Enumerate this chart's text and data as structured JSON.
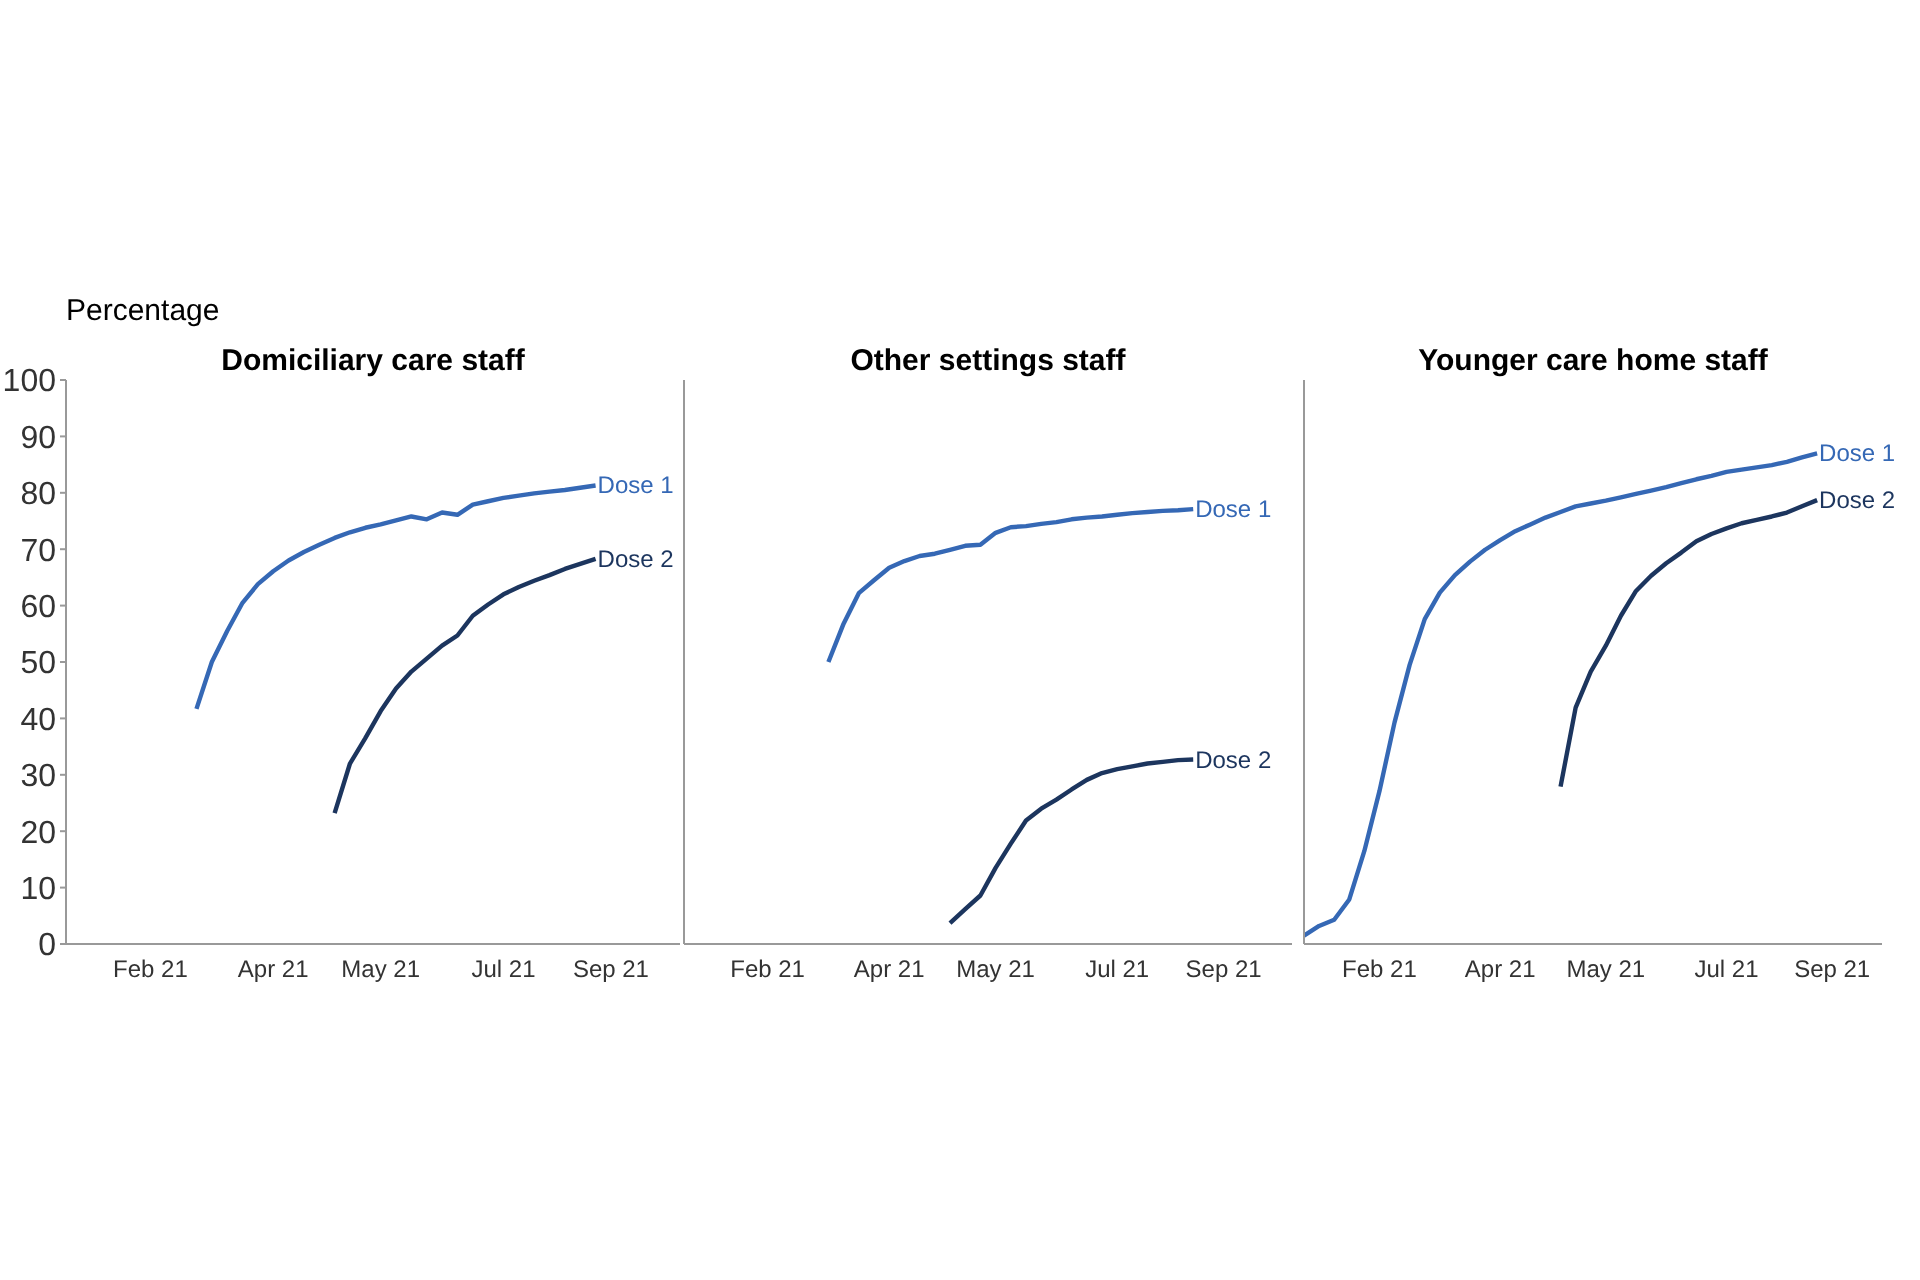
{
  "chart_data": [
    {
      "type": "line",
      "title": "Domiciliary care staff",
      "ylabel": "Percentage",
      "categories": [
        null,
        null,
        null,
        null,
        null,
        "Feb 21",
        null,
        null,
        null,
        null,
        null,
        null,
        null,
        "Apr 21",
        null,
        null,
        null,
        null,
        null,
        null,
        "May 21",
        null,
        null,
        null,
        null,
        null,
        null,
        null,
        "Jul 21",
        null,
        null,
        null,
        null,
        null,
        null,
        "Sep 21",
        null,
        null,
        null,
        null,
        null
      ],
      "ylim": [
        0,
        100
      ],
      "yticks": [
        0,
        10,
        20,
        30,
        40,
        50,
        60,
        70,
        80,
        90,
        100
      ],
      "grid": false,
      "legend": false,
      "marker": "none",
      "line_style": "solid",
      "series": [
        {
          "name": "Dose 1",
          "color": "#3568b5",
          "values": [
            null,
            null,
            null,
            null,
            null,
            null,
            null,
            null,
            41.7,
            50,
            55.5,
            60.5,
            63.8,
            66.1,
            68,
            69.5,
            70.8,
            72,
            73,
            73.8,
            74.4,
            75.1,
            75.8,
            75.3,
            76.5,
            76.1,
            77.9,
            78.5,
            79.1,
            79.5,
            79.9,
            80.2,
            80.5,
            80.9,
            81.3,
            null,
            null,
            null,
            null,
            null,
            null
          ]
        },
        {
          "name": "Dose 2",
          "color": "#1c355e",
          "values": [
            null,
            null,
            null,
            null,
            null,
            null,
            null,
            null,
            null,
            null,
            null,
            null,
            null,
            null,
            null,
            null,
            null,
            23.2,
            32,
            36.5,
            41.3,
            45.3,
            48.3,
            50.6,
            52.9,
            54.7,
            58.2,
            60.2,
            62,
            63.3,
            64.4,
            65.4,
            66.5,
            67.4,
            68.3,
            null,
            null,
            null,
            null,
            null,
            null
          ]
        }
      ]
    },
    {
      "type": "line",
      "title": "Other settings staff",
      "tick_labels": "x",
      "categories": [
        null,
        null,
        null,
        null,
        null,
        "Feb 21",
        null,
        null,
        null,
        null,
        null,
        null,
        null,
        "Apr 21",
        null,
        null,
        null,
        null,
        null,
        null,
        "May 21",
        null,
        null,
        null,
        null,
        null,
        null,
        null,
        "Jul 21",
        null,
        null,
        null,
        null,
        null,
        null,
        "Sep 21",
        null,
        null,
        null,
        null,
        null
      ],
      "ylim": [
        0,
        100
      ],
      "yticks": [
        0,
        10,
        20,
        30,
        40,
        50,
        60,
        70,
        80,
        90,
        100
      ],
      "grid": false,
      "legend": false,
      "marker": "none",
      "line_style": "solid",
      "series": [
        {
          "name": "Dose 1",
          "color": "#3568b5",
          "values": [
            null,
            null,
            null,
            null,
            null,
            null,
            null,
            null,
            null,
            50,
            56.8,
            62.2,
            64.5,
            66.7,
            67.9,
            68.8,
            69.2,
            69.9,
            70.6,
            70.8,
            72.9,
            73.9,
            74.1,
            74.5,
            74.8,
            75.3,
            75.6,
            75.8,
            76.1,
            76.4,
            76.6,
            76.8,
            76.9,
            77.1,
            null,
            null,
            null,
            null,
            null,
            null,
            null
          ]
        },
        {
          "name": "Dose 2",
          "color": "#1c355e",
          "values": [
            null,
            null,
            null,
            null,
            null,
            null,
            null,
            null,
            null,
            null,
            null,
            null,
            null,
            null,
            null,
            null,
            null,
            3.7,
            6.2,
            8.6,
            13.5,
            17.8,
            21.9,
            24,
            25.6,
            27.4,
            29.1,
            30.3,
            31,
            31.5,
            32,
            32.3,
            32.6,
            32.7,
            null,
            null,
            null,
            null,
            null,
            null,
            null
          ]
        }
      ]
    },
    {
      "type": "line",
      "title": "Younger care home staff",
      "tick_labels": "x",
      "categories": [
        null,
        null,
        null,
        null,
        null,
        "Feb 21",
        null,
        null,
        null,
        null,
        null,
        null,
        null,
        "Apr 21",
        null,
        null,
        null,
        null,
        null,
        null,
        "May 21",
        null,
        null,
        null,
        null,
        null,
        null,
        null,
        "Jul 21",
        null,
        null,
        null,
        null,
        null,
        null,
        "Sep 21",
        null,
        null,
        null
      ],
      "ylim": [
        0,
        100
      ],
      "yticks": [
        0,
        10,
        20,
        30,
        40,
        50,
        60,
        70,
        80,
        90,
        100
      ],
      "grid": false,
      "legend": false,
      "marker": "none",
      "line_style": "solid",
      "series": [
        {
          "name": "Dose 1",
          "color": "#3568b5",
          "values": [
            1.5,
            3.2,
            4.3,
            7.9,
            16.5,
            27.1,
            39.3,
            49.5,
            57.6,
            62.3,
            65.4,
            67.8,
            69.9,
            71.6,
            73.2,
            74.4,
            75.6,
            76.6,
            77.6,
            78.1,
            78.6,
            79.2,
            79.8,
            80.4,
            81,
            81.7,
            82.4,
            83,
            83.7,
            84.1,
            84.5,
            84.9,
            85.5,
            86.3,
            87,
            null,
            null,
            null,
            null
          ]
        },
        {
          "name": "Dose 2",
          "color": "#1c355e",
          "values": [
            null,
            null,
            null,
            null,
            null,
            null,
            null,
            null,
            null,
            null,
            null,
            null,
            null,
            null,
            null,
            null,
            null,
            27.9,
            41.9,
            48.3,
            52.9,
            58.2,
            62.6,
            65.3,
            67.5,
            69.4,
            71.4,
            72.7,
            73.7,
            74.6,
            75.2,
            75.8,
            76.5,
            77.6,
            78.7,
            null,
            null,
            null,
            null
          ]
        }
      ]
    }
  ]
}
